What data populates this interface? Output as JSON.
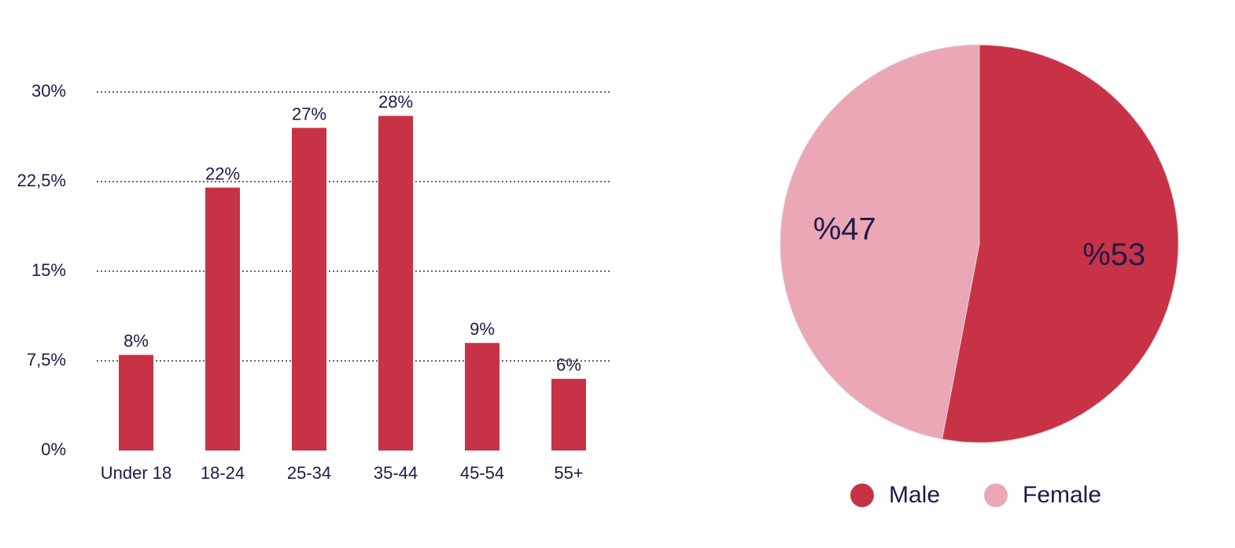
{
  "chart_data": [
    {
      "type": "bar",
      "categories": [
        "Under 18",
        "18-24",
        "25-34",
        "35-44",
        "45-54",
        "55+"
      ],
      "values": [
        8,
        22,
        27,
        28,
        9,
        6
      ],
      "value_labels": [
        "8%",
        "22%",
        "27%",
        "28%",
        "9%",
        "6%"
      ],
      "color": "#c83246",
      "ylim": [
        0,
        30
      ],
      "yticks": [
        {
          "value": 0,
          "label": "0%"
        },
        {
          "value": 7.5,
          "label": "7,5%"
        },
        {
          "value": 15,
          "label": "15%"
        },
        {
          "value": 22.5,
          "label": "22,5%"
        },
        {
          "value": 30,
          "label": "30%"
        }
      ],
      "grid": true
    },
    {
      "type": "pie",
      "categories": [
        "Male",
        "Female"
      ],
      "values": [
        53,
        47
      ],
      "value_labels": [
        "%53",
        "%47"
      ],
      "colors": [
        "#c83246",
        "#eba7b5"
      ],
      "legend": "bottom"
    }
  ]
}
